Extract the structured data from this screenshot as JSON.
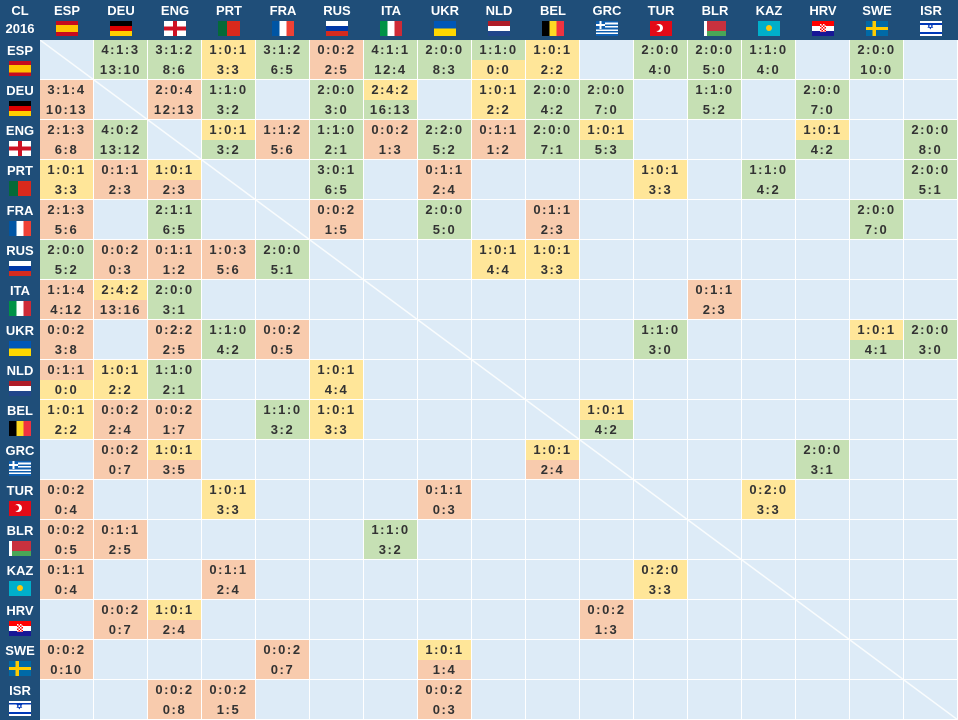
{
  "corner": {
    "line1": "CL",
    "line2": "2016"
  },
  "teams": [
    "ESP",
    "DEU",
    "ENG",
    "PRT",
    "FRA",
    "RUS",
    "ITA",
    "UKR",
    "NLD",
    "BEL",
    "GRC",
    "TUR",
    "BLR",
    "KAZ",
    "HRV",
    "SWE",
    "ISR"
  ],
  "colors": {
    "win": "#c6e0b4",
    "draw": "#ffe699",
    "loss": "#f8cbad",
    "empty": "#ddebf7",
    "header": "#1f4e79"
  },
  "matrix": [
    [
      null,
      "4:1:3|13:10",
      "3:1:2|8:6",
      "1:0:1|3:3",
      "3:1:2|6:5",
      "0:0:2|2:5",
      "4:1:1|12:4",
      "2:0:0|8:3",
      "1:1:0|0:0",
      "1:0:1|2:2",
      null,
      "2:0:0|4:0",
      "2:0:0|5:0",
      "1:1:0|4:0",
      null,
      "2:0:0|10:0",
      null
    ],
    [
      "3:1:4|10:13",
      null,
      "2:0:4|12:13",
      "1:1:0|3:2",
      null,
      "2:0:0|3:0",
      "2:4:2|16:13",
      null,
      "1:0:1|2:2",
      "2:0:0|4:2",
      "2:0:0|7:0",
      null,
      "1:1:0|5:2",
      null,
      "2:0:0|7:0",
      null,
      null
    ],
    [
      "2:1:3|6:8",
      "4:0:2|13:12",
      null,
      "1:0:1|3:2",
      "1:1:2|5:6",
      "1:1:0|2:1",
      "0:0:2|1:3",
      "2:2:0|5:2",
      "0:1:1|1:2",
      "2:0:0|7:1",
      "1:0:1|5:3",
      null,
      null,
      null,
      "1:0:1|4:2",
      null,
      "2:0:0|8:0"
    ],
    [
      "1:0:1|3:3",
      "0:1:1|2:3",
      "1:0:1|2:3",
      null,
      null,
      "3:0:1|6:5",
      null,
      "0:1:1|2:4",
      null,
      null,
      null,
      "1:0:1|3:3",
      null,
      "1:1:0|4:2",
      null,
      null,
      "2:0:0|5:1"
    ],
    [
      "2:1:3|5:6",
      null,
      "2:1:1|6:5",
      null,
      null,
      "0:0:2|1:5",
      null,
      "2:0:0|5:0",
      null,
      "0:1:1|2:3",
      null,
      null,
      null,
      null,
      null,
      "2:0:0|7:0",
      null
    ],
    [
      "2:0:0|5:2",
      "0:0:2|0:3",
      "0:1:1|1:2",
      "1:0:3|5:6",
      "2:0:0|5:1",
      null,
      null,
      null,
      "1:0:1|4:4",
      "1:0:1|3:3",
      null,
      null,
      null,
      null,
      null,
      null,
      null
    ],
    [
      "1:1:4|4:12",
      "2:4:2|13:16",
      "2:0:0|3:1",
      null,
      null,
      null,
      null,
      null,
      null,
      null,
      null,
      null,
      "0:1:1|2:3",
      null,
      null,
      null,
      null
    ],
    [
      "0:0:2|3:8",
      null,
      "0:2:2|2:5",
      "1:1:0|4:2",
      "0:0:2|0:5",
      null,
      null,
      null,
      null,
      null,
      null,
      "1:1:0|3:0",
      null,
      null,
      null,
      "1:0:1|4:1",
      "2:0:0|3:0"
    ],
    [
      "0:1:1|0:0",
      "1:0:1|2:2",
      "1:1:0|2:1",
      null,
      null,
      "1:0:1|4:4",
      null,
      null,
      null,
      null,
      null,
      null,
      null,
      null,
      null,
      null,
      null
    ],
    [
      "1:0:1|2:2",
      "0:0:2|2:4",
      "0:0:2|1:7",
      null,
      "1:1:0|3:2",
      "1:0:1|3:3",
      null,
      null,
      null,
      null,
      "1:0:1|4:2",
      null,
      null,
      null,
      null,
      null,
      null
    ],
    [
      null,
      "0:0:2|0:7",
      "1:0:1|3:5",
      null,
      null,
      null,
      null,
      null,
      null,
      "1:0:1|2:4",
      null,
      null,
      null,
      null,
      "2:0:0|3:1",
      null,
      null
    ],
    [
      "0:0:2|0:4",
      null,
      null,
      "1:0:1|3:3",
      null,
      null,
      null,
      "0:1:1|0:3",
      null,
      null,
      null,
      null,
      null,
      "0:2:0|3:3",
      null,
      null,
      null
    ],
    [
      "0:0:2|0:5",
      "0:1:1|2:5",
      null,
      null,
      null,
      null,
      "1:1:0|3:2",
      null,
      null,
      null,
      null,
      null,
      null,
      null,
      null,
      null,
      null
    ],
    [
      "0:1:1|0:4",
      null,
      null,
      "0:1:1|2:4",
      null,
      null,
      null,
      null,
      null,
      null,
      null,
      "0:2:0|3:3",
      null,
      null,
      null,
      null,
      null
    ],
    [
      null,
      "0:0:2|0:7",
      "1:0:1|2:4",
      null,
      null,
      null,
      null,
      null,
      null,
      null,
      "0:0:2|1:3",
      null,
      null,
      null,
      null,
      null,
      null
    ],
    [
      "0:0:2|0:10",
      null,
      null,
      null,
      "0:0:2|0:7",
      null,
      null,
      "1:0:1|1:4",
      null,
      null,
      null,
      null,
      null,
      null,
      null,
      null,
      null
    ],
    [
      null,
      null,
      "0:0:2|0:8",
      "0:0:2|1:5",
      null,
      null,
      null,
      "0:0:2|0:3",
      null,
      null,
      null,
      null,
      null,
      null,
      null,
      null,
      null
    ]
  ]
}
